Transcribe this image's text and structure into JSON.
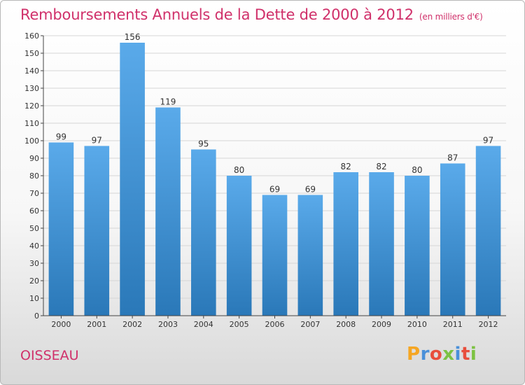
{
  "chart_data": {
    "type": "bar",
    "title": "Remboursements Annuels de la Dette de 2000 à 2012",
    "subtitle": "(en milliers d'€)",
    "categories": [
      "2000",
      "2001",
      "2002",
      "2003",
      "2004",
      "2005",
      "2006",
      "2007",
      "2008",
      "2009",
      "2010",
      "2011",
      "2012"
    ],
    "values": [
      99,
      97,
      156,
      119,
      95,
      80,
      69,
      69,
      82,
      82,
      80,
      87,
      97
    ],
    "ylim": [
      0,
      160
    ],
    "yticks": [
      0,
      10,
      20,
      30,
      40,
      50,
      60,
      70,
      80,
      90,
      100,
      110,
      120,
      130,
      140,
      150,
      160
    ],
    "grid": true,
    "data_labels": true,
    "bar_color_top": "#5aaaea",
    "bar_color_bottom": "#2a78b8"
  },
  "footer": {
    "city": "OISSEAU",
    "logo_letters": [
      {
        "ch": "P",
        "color": "#f5a623"
      },
      {
        "ch": "r",
        "color": "#4a90d9"
      },
      {
        "ch": "o",
        "color": "#e84e3c"
      },
      {
        "ch": "x",
        "color": "#7cc242"
      },
      {
        "ch": "i",
        "color": "#4a90d9"
      },
      {
        "ch": "t",
        "color": "#e84e3c"
      },
      {
        "ch": "i",
        "color": "#7cc242"
      }
    ]
  }
}
